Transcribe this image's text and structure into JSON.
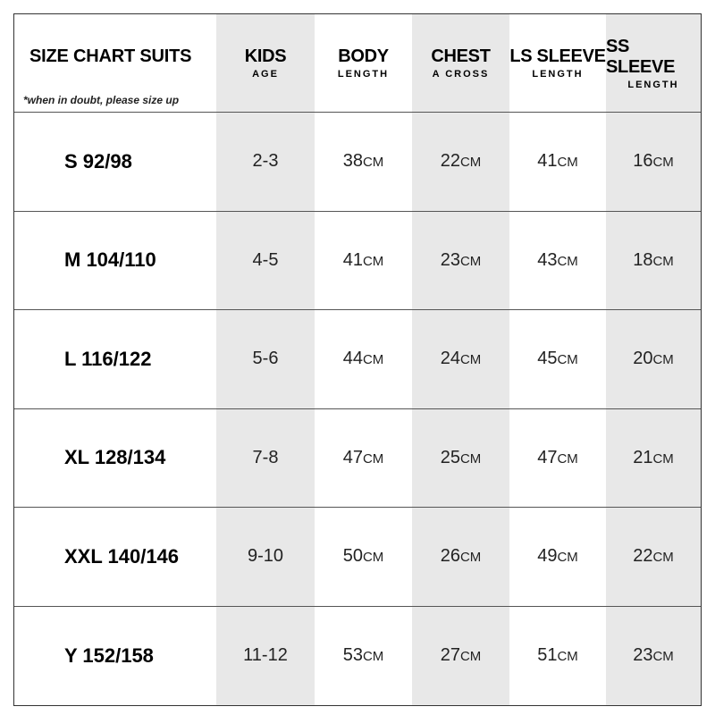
{
  "title": "SIZE CHART SUITS",
  "note": "*when in doubt, please size up",
  "unit": "CM",
  "columns": [
    {
      "main": "KIDS",
      "sub": "AGE"
    },
    {
      "main": "BODY",
      "sub": "LENGTH"
    },
    {
      "main": "CHEST",
      "sub": "A CROSS"
    },
    {
      "main": "LS SLEEVE",
      "sub": "LENGTH"
    },
    {
      "main": "SS SLEEVE",
      "sub": "LENGTH"
    }
  ],
  "shaded_column_color": "#e8e8e8",
  "rows": [
    {
      "size": "S 92/98",
      "age": "2-3",
      "body": "38",
      "chest": "22",
      "ls": "41",
      "ss": "16"
    },
    {
      "size": "M 104/110",
      "age": "4-5",
      "body": "41",
      "chest": "23",
      "ls": "43",
      "ss": "18"
    },
    {
      "size": "L 116/122",
      "age": "5-6",
      "body": "44",
      "chest": "24",
      "ls": "45",
      "ss": "20"
    },
    {
      "size": "XL 128/134",
      "age": "7-8",
      "body": "47",
      "chest": "25",
      "ls": "47",
      "ss": "21"
    },
    {
      "size": "XXL 140/146",
      "age": "9-10",
      "body": "50",
      "chest": "26",
      "ls": "49",
      "ss": "22"
    },
    {
      "size": "Y 152/158",
      "age": "11-12",
      "body": "53",
      "chest": "27",
      "ls": "51",
      "ss": "23"
    }
  ]
}
